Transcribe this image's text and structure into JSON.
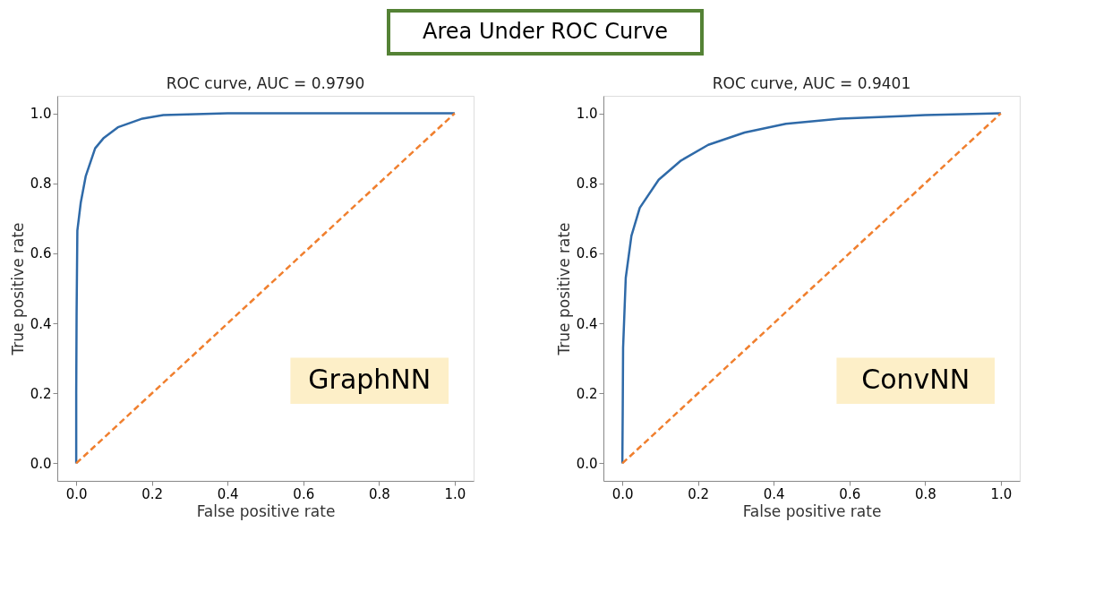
{
  "chart_data": [
    {
      "type": "other",
      "title": "Area Under ROC Curve",
      "color": "#548235"
    },
    {
      "type": "line",
      "title": "ROC curve, AUC = 0.9790",
      "xlabel": "False positive rate",
      "ylabel": "True positive rate",
      "annotations": [
        "GraphNN"
      ],
      "grid": false,
      "xlim": [
        -0.05,
        1.05
      ],
      "ylim": [
        -0.05,
        1.05
      ],
      "xticks": [
        {
          "value": 0,
          "label": "0.0"
        },
        {
          "value": 0.2,
          "label": "0.2"
        },
        {
          "value": 0.4,
          "label": "0.4"
        },
        {
          "value": 0.6,
          "label": "0.6"
        },
        {
          "value": 0.8,
          "label": "0.8"
        },
        {
          "value": 1,
          "label": "1.0"
        }
      ],
      "yticks": [
        {
          "value": 0,
          "label": "0.0"
        },
        {
          "value": 0.2,
          "label": "0.2"
        },
        {
          "value": 0.4,
          "label": "0.4"
        },
        {
          "value": 0.6,
          "label": "0.6"
        },
        {
          "value": 0.8,
          "label": "0.8"
        },
        {
          "value": 1,
          "label": "1.0"
        }
      ],
      "series": [
        {
          "color": "#2f6aa8",
          "line_style": "solid",
          "x": [
            0,
            0,
            0.001,
            0.003,
            0.012,
            0.025,
            0.05,
            0.073,
            0.11,
            0.175,
            0.23,
            0.4,
            1.0
          ],
          "values": [
            0,
            0.2,
            0.43,
            0.665,
            0.745,
            0.82,
            0.9,
            0.93,
            0.96,
            0.985,
            0.995,
            1.0,
            1.0
          ]
        },
        {
          "color": "#f07f2e",
          "line_style": "dashed",
          "x": [
            0,
            1
          ],
          "values": [
            0,
            1
          ]
        }
      ]
    },
    {
      "type": "line",
      "title": "ROC curve, AUC = 0.9401",
      "xlabel": "False positive rate",
      "ylabel": "True positive rate",
      "annotations": [
        "ConvNN"
      ],
      "grid": false,
      "xlim": [
        -0.05,
        1.05
      ],
      "ylim": [
        -0.05,
        1.05
      ],
      "xticks": [
        {
          "value": 0,
          "label": "0.0"
        },
        {
          "value": 0.2,
          "label": "0.2"
        },
        {
          "value": 0.4,
          "label": "0.4"
        },
        {
          "value": 0.6,
          "label": "0.6"
        },
        {
          "value": 0.8,
          "label": "0.8"
        },
        {
          "value": 1,
          "label": "1.0"
        }
      ],
      "yticks": [
        {
          "value": 0,
          "label": "0.0"
        },
        {
          "value": 0.2,
          "label": "0.2"
        },
        {
          "value": 0.4,
          "label": "0.4"
        },
        {
          "value": 0.6,
          "label": "0.6"
        },
        {
          "value": 0.8,
          "label": "0.8"
        },
        {
          "value": 1,
          "label": "1.0"
        }
      ],
      "series": [
        {
          "color": "#2f6aa8",
          "line_style": "solid",
          "x": [
            0,
            0.001,
            0.002,
            0.009,
            0.024,
            0.046,
            0.096,
            0.155,
            0.227,
            0.323,
            0.432,
            0.577,
            0.8,
            1.0
          ],
          "values": [
            0,
            0.15,
            0.33,
            0.53,
            0.65,
            0.73,
            0.81,
            0.865,
            0.91,
            0.945,
            0.97,
            0.985,
            0.995,
            1.0
          ]
        },
        {
          "color": "#f07f2e",
          "line_style": "dashed",
          "x": [
            0,
            1
          ],
          "values": [
            0,
            1
          ]
        }
      ]
    }
  ]
}
